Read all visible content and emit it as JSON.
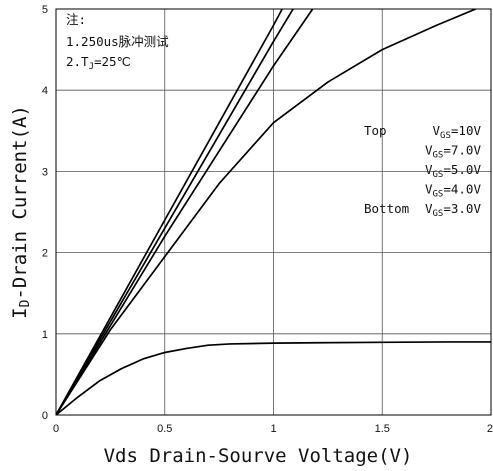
{
  "chart_data": {
    "type": "line",
    "xlabel": "Vds Drain-Sourve Voltage(V)",
    "ylabel": {
      "main": "I",
      "sub": "D",
      "rest": "-Drain Current(A)"
    },
    "xlim": [
      0,
      2
    ],
    "ylim": [
      0,
      5
    ],
    "x_ticks": [
      0,
      0.5,
      1,
      1.5,
      2
    ],
    "x_tick_labels": [
      "0",
      "0.5",
      "1",
      "1.5",
      "2"
    ],
    "y_ticks": [
      0,
      1,
      2,
      3,
      4,
      5
    ],
    "y_tick_labels": [
      "0",
      "1",
      "2",
      "3",
      "4",
      "5"
    ],
    "grid": true,
    "notes": {
      "title": "注:",
      "line1": "1.250us脉冲测试",
      "line2_prefix": "2.T",
      "line2_sub": "J",
      "line2_suffix": "=25℃"
    },
    "legend": {
      "placement": "right",
      "entries": [
        {
          "prefix": "Top",
          "v": "V",
          "sub": "GS",
          "value": "=10V"
        },
        {
          "prefix": "",
          "v": "V",
          "sub": "GS",
          "value": "=7.0V"
        },
        {
          "prefix": "",
          "v": "V",
          "sub": "GS",
          "value": "=5.0V"
        },
        {
          "prefix": "",
          "v": "V",
          "sub": "GS",
          "value": "=4.0V"
        },
        {
          "prefix": "Bottom",
          "v": "V",
          "sub": "GS",
          "value": "=3.0V"
        }
      ]
    },
    "series": [
      {
        "x": [
          0,
          0.5,
          1.0,
          1.04
        ],
        "y": [
          0,
          2.4,
          4.8,
          5.0
        ],
        "color": "#000000"
      },
      {
        "x": [
          0,
          0.5,
          1.0,
          1.09
        ],
        "y": [
          0,
          2.3,
          4.6,
          5.0
        ],
        "color": "#000000"
      },
      {
        "x": [
          0,
          0.5,
          1.0,
          1.18
        ],
        "y": [
          0,
          2.2,
          4.3,
          5.0
        ],
        "color": "#000000"
      },
      {
        "x": [
          0,
          0.25,
          0.5,
          0.75,
          1.0,
          1.25,
          1.5,
          1.75,
          1.93
        ],
        "y": [
          0,
          1.05,
          1.95,
          2.85,
          3.6,
          4.1,
          4.5,
          4.8,
          5.0
        ],
        "color": "#000000"
      },
      {
        "x": [
          0,
          0.1,
          0.2,
          0.3,
          0.4,
          0.5,
          0.6,
          0.7,
          0.8,
          1.0,
          1.2,
          1.5,
          1.8,
          2.0
        ],
        "y": [
          0,
          0.22,
          0.42,
          0.57,
          0.69,
          0.77,
          0.82,
          0.86,
          0.875,
          0.885,
          0.89,
          0.895,
          0.9,
          0.9
        ],
        "color": "#000000"
      }
    ]
  }
}
